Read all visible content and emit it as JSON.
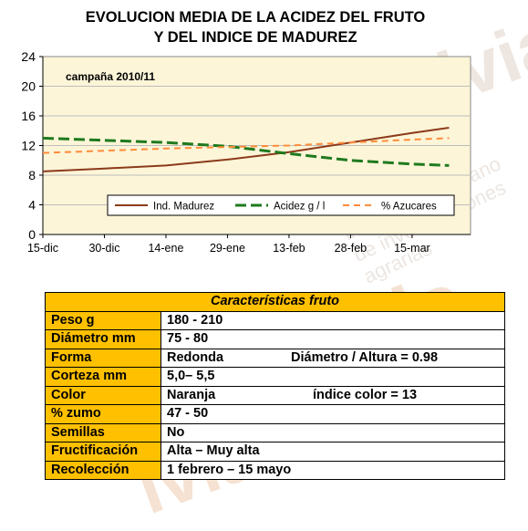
{
  "title_line1": "EVOLUCION MEDIA DE LA ACIDEZ DEL FRUTO",
  "title_line2": "Y DEL INDICE DE MADUREZ",
  "watermark": {
    "logo": "ivia",
    "text": "instituto valenciano de investigaciones agrarias"
  },
  "colors": {
    "plot_bg": "#fdf5d8",
    "header_bg": "#ffc000",
    "madurez": "#8b3a1a",
    "acidez": "#1e7a1e",
    "azucares": "#ff8c3a"
  },
  "chart_data": {
    "type": "line",
    "annotation": "campaña 2010/11",
    "categories": [
      "15-dic",
      "30-dic",
      "14-ene",
      "29-ene",
      "13-feb",
      "28-feb",
      "15-mar"
    ],
    "ylim": [
      0,
      24
    ],
    "yticks": [
      "0",
      "4",
      "8",
      "12",
      "16",
      "20",
      "24"
    ],
    "grid": true,
    "legend_position": "inside-bottom",
    "series": [
      {
        "name": "Ind. Madurez",
        "style": "solid",
        "x": [
          0,
          1,
          2,
          3,
          4,
          5,
          6,
          6.6
        ],
        "values": [
          8.5,
          8.9,
          9.3,
          10.1,
          11.1,
          12.4,
          13.7,
          14.4
        ]
      },
      {
        "name": "Acidez g / l",
        "style": "dashed",
        "x": [
          0,
          1,
          2,
          3,
          4,
          5,
          6,
          6.6
        ],
        "values": [
          13.0,
          12.7,
          12.4,
          11.9,
          10.9,
          10.0,
          9.5,
          9.3
        ]
      },
      {
        "name": "% Azucares",
        "style": "dashed-short",
        "x": [
          0,
          1,
          2,
          3,
          4,
          5,
          6,
          6.6
        ],
        "values": [
          11.0,
          11.3,
          11.6,
          11.8,
          12.0,
          12.4,
          12.8,
          13.0
        ]
      }
    ]
  },
  "table": {
    "header": "Características fruto",
    "rows": [
      {
        "label": "Peso     g",
        "value": "180 - 210",
        "extra": ""
      },
      {
        "label": "Diámetro  mm",
        "value": "75 - 80",
        "extra": ""
      },
      {
        "label": "Forma",
        "value": "Redonda",
        "extra": "Diámetro / Altura = 0.98"
      },
      {
        "label": "Corteza     mm",
        "value": "5,0– 5,5",
        "extra": ""
      },
      {
        "label": "Color",
        "value": "Naranja",
        "extra": "índice color = 13"
      },
      {
        "label": "% zumo",
        "value": "47 - 50",
        "extra": ""
      },
      {
        "label": "Semillas",
        "value": "No",
        "extra": ""
      },
      {
        "label": "Fructificación",
        "value": "Alta – Muy alta",
        "extra": ""
      },
      {
        "label": "Recolección",
        "value": "1 febrero – 15 mayo",
        "extra": ""
      }
    ]
  }
}
